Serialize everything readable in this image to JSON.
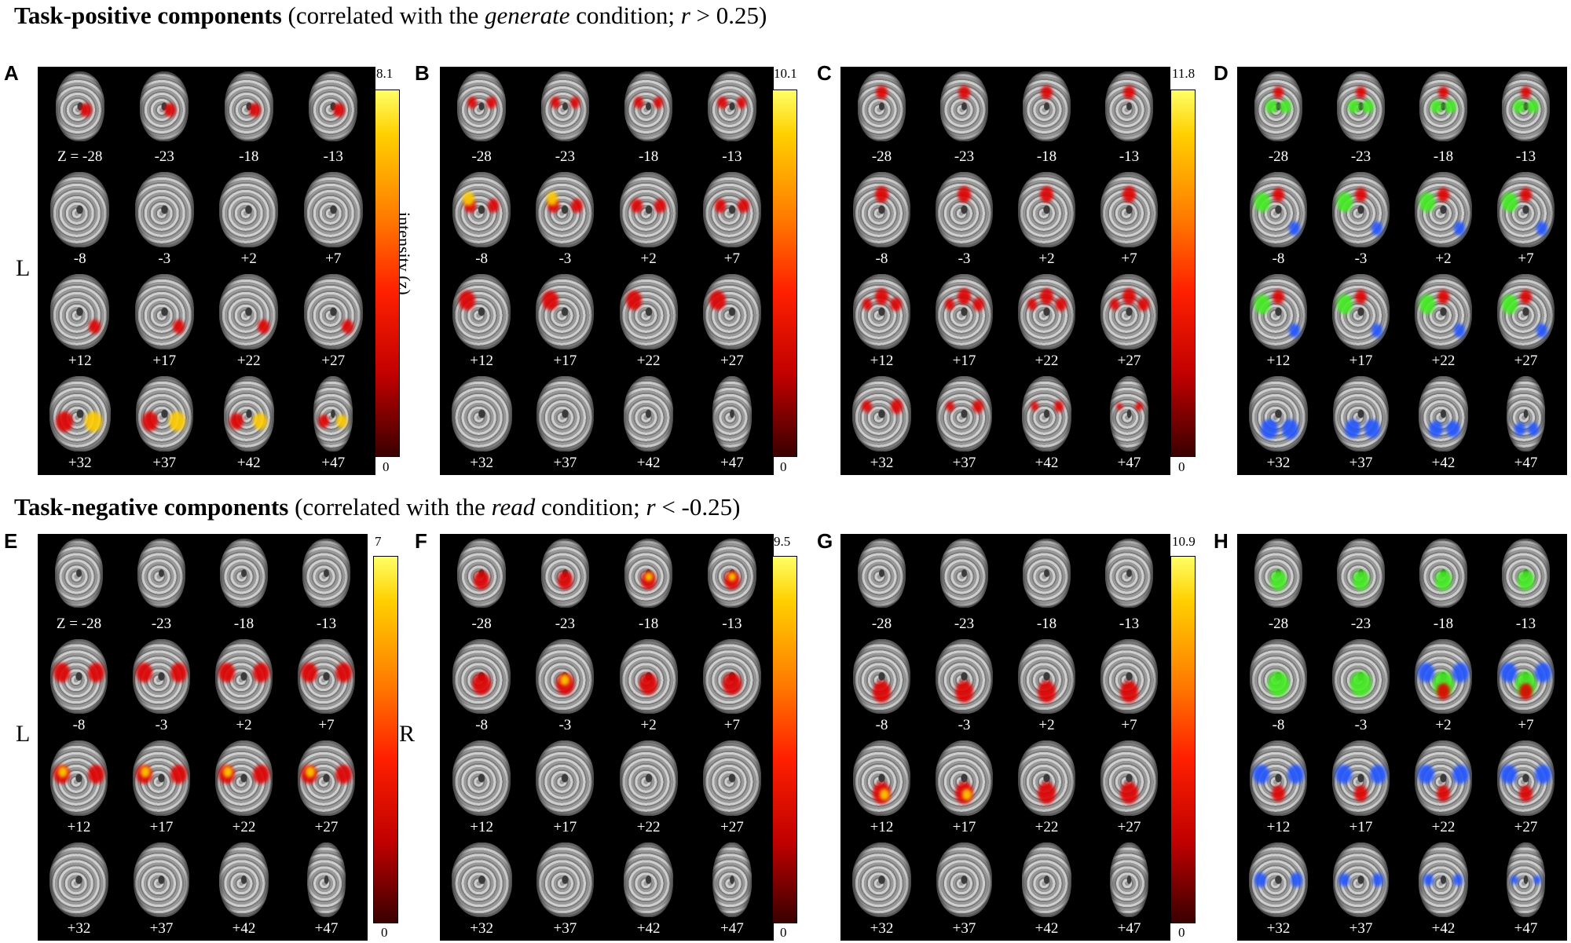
{
  "figure": {
    "sections": [
      {
        "title_bold": "Task-positive components",
        "title_pre": " (correlated with the ",
        "title_italic": "generate",
        "title_mid": " condition; ",
        "title_var": "r",
        "title_post": " > 0.25)",
        "side_label": "L",
        "colorbar_label": "intensity (z)",
        "panels": [
          {
            "letter": "A",
            "max": "8.1",
            "min": "0",
            "first_label": "Z = -28"
          },
          {
            "letter": "B",
            "max": "10.1",
            "min": "0",
            "first_label": "-28"
          },
          {
            "letter": "C",
            "max": "11.8",
            "min": "0",
            "first_label": "-28"
          },
          {
            "letter": "D",
            "max": "",
            "min": "",
            "first_label": "-28"
          }
        ]
      },
      {
        "title_bold": "Task-negative components",
        "title_pre": " (correlated with the ",
        "title_italic": "read",
        "title_mid": " condition; ",
        "title_var": "r",
        "title_post": " < -0.25)",
        "side_label": "L",
        "right_label": "R",
        "panels": [
          {
            "letter": "E",
            "max": "7",
            "min": "0",
            "first_label": "Z = -28"
          },
          {
            "letter": "F",
            "max": "9.5",
            "min": "0",
            "first_label": "-28"
          },
          {
            "letter": "G",
            "max": "10.9",
            "min": "0",
            "first_label": "-28"
          },
          {
            "letter": "H",
            "max": "",
            "min": "",
            "first_label": "-28"
          }
        ]
      }
    ],
    "slice_labels": [
      "-28",
      "-23",
      "-18",
      "-13",
      "-8",
      "-3",
      "+2",
      "+7",
      "+12",
      "+17",
      "+22",
      "+27",
      "+32",
      "+37",
      "+42",
      "+47"
    ],
    "colors": {
      "activation_red": "#e00000",
      "activation_yellow": "#ffcc00",
      "overlay_green": "#44ee22",
      "overlay_blue": "#2255ff"
    }
  }
}
